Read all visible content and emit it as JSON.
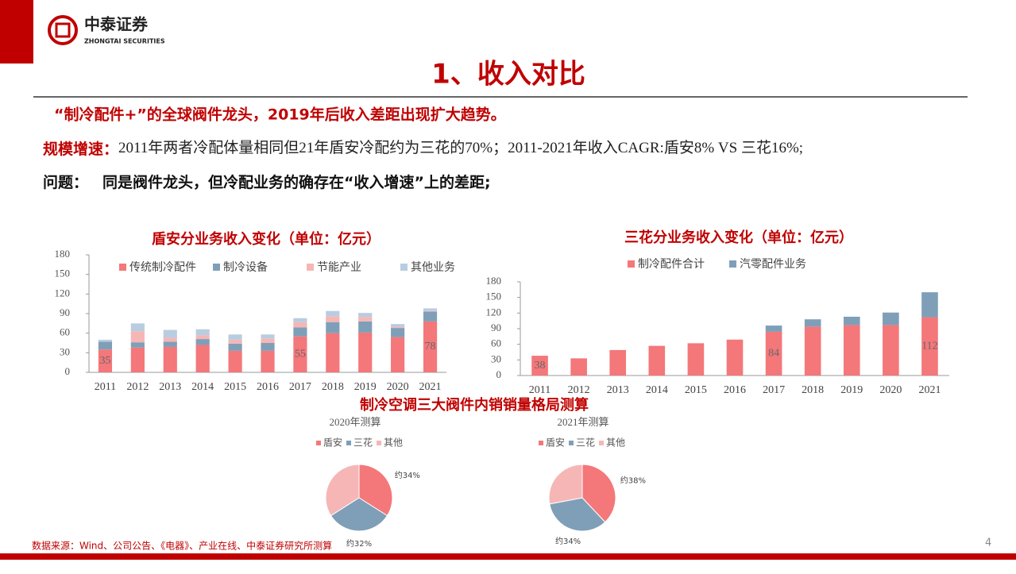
{
  "header": {
    "logo_cn": "中泰证券",
    "logo_en": "ZHONGTAI SECURITIES"
  },
  "title": "1、收入对比",
  "lines": [
    {
      "text": "“制冷配件+”的全球阀件龙头，2019年后收入差距出现扩大趋势。"
    },
    {
      "label": "规模增速：",
      "text": "2011年两者冷配体量相同但21年盾安冷配约为三花的70%；2011-2021年收入CAGR:盾安8% VS 三花16%;"
    },
    {
      "label": "问题：",
      "text": "同是阀件龙头，但冷配业务的确存在“收入增速”上的差距;"
    }
  ],
  "pie_section_title": "制冷空调三大阀件内销销量格局测算",
  "source": "数据来源：Wind、公司公告、《电器》、产业在线、中泰证券研究所测算",
  "page_number": "4",
  "chart_data": [
    {
      "type": "bar",
      "stacked": true,
      "title": "盾安分业务收入变化（单位：亿元）",
      "categories": [
        "2011",
        "2012",
        "2013",
        "2014",
        "2015",
        "2016",
        "2017",
        "2018",
        "2019",
        "2020",
        "2021"
      ],
      "series": [
        {
          "name": "传统制冷配件",
          "color": "#f4777a",
          "values": [
            35,
            38,
            39,
            42,
            33,
            33,
            55,
            60,
            61,
            54,
            78
          ],
          "value_labels": [
            35,
            null,
            null,
            null,
            null,
            null,
            55,
            null,
            null,
            null,
            78
          ]
        },
        {
          "name": "制冷设备",
          "color": "#7f9fb8",
          "values": [
            12,
            8,
            8,
            9,
            11,
            12,
            14,
            17,
            17,
            14,
            15
          ]
        },
        {
          "name": "节能产业",
          "color": "#f6b6b6",
          "values": [
            0,
            17,
            6,
            6,
            6,
            7,
            8,
            9,
            7,
            2,
            1
          ]
        },
        {
          "name": "其他业务",
          "color": "#b8cde0",
          "values": [
            3,
            12,
            12,
            9,
            8,
            6,
            6,
            8,
            6,
            4,
            4
          ]
        }
      ],
      "ylim": [
        0,
        180
      ],
      "yticks": [
        0,
        30,
        60,
        90,
        120,
        150,
        180
      ]
    },
    {
      "type": "bar",
      "stacked": true,
      "title": "三花分业务收入变化（单位：亿元）",
      "categories": [
        "2011",
        "2012",
        "2013",
        "2014",
        "2015",
        "2016",
        "2017",
        "2018",
        "2019",
        "2020",
        "2021"
      ],
      "series": [
        {
          "name": "制冷配件合计",
          "color": "#f4777a",
          "values": [
            38,
            33,
            49,
            57,
            62,
            69,
            84,
            94,
            97,
            97,
            112
          ],
          "value_labels": [
            38,
            null,
            null,
            null,
            null,
            null,
            84,
            null,
            null,
            null,
            112
          ]
        },
        {
          "name": "汽零配件业务",
          "color": "#7f9fb8",
          "values": [
            0,
            0,
            0,
            0,
            0,
            0,
            12,
            14,
            16,
            24,
            48
          ]
        }
      ],
      "ylim": [
        0,
        180
      ],
      "yticks": [
        0,
        30,
        60,
        90,
        120,
        150,
        180
      ]
    },
    {
      "type": "pie",
      "title": "2020年测算",
      "categories": [
        "盾安",
        "三花",
        "其他"
      ],
      "values": [
        34,
        32,
        34
      ],
      "value_labels": [
        "约34%",
        "约32%",
        null
      ],
      "colors": [
        "#f4777a",
        "#7f9fb8",
        "#f6b6b6"
      ]
    },
    {
      "type": "pie",
      "title": "2021年测算",
      "categories": [
        "盾安",
        "三花",
        "其他"
      ],
      "values": [
        38,
        34,
        28
      ],
      "value_labels": [
        "约38%",
        "约34%",
        null
      ],
      "colors": [
        "#f4777a",
        "#7f9fb8",
        "#f6b6b6"
      ]
    }
  ]
}
